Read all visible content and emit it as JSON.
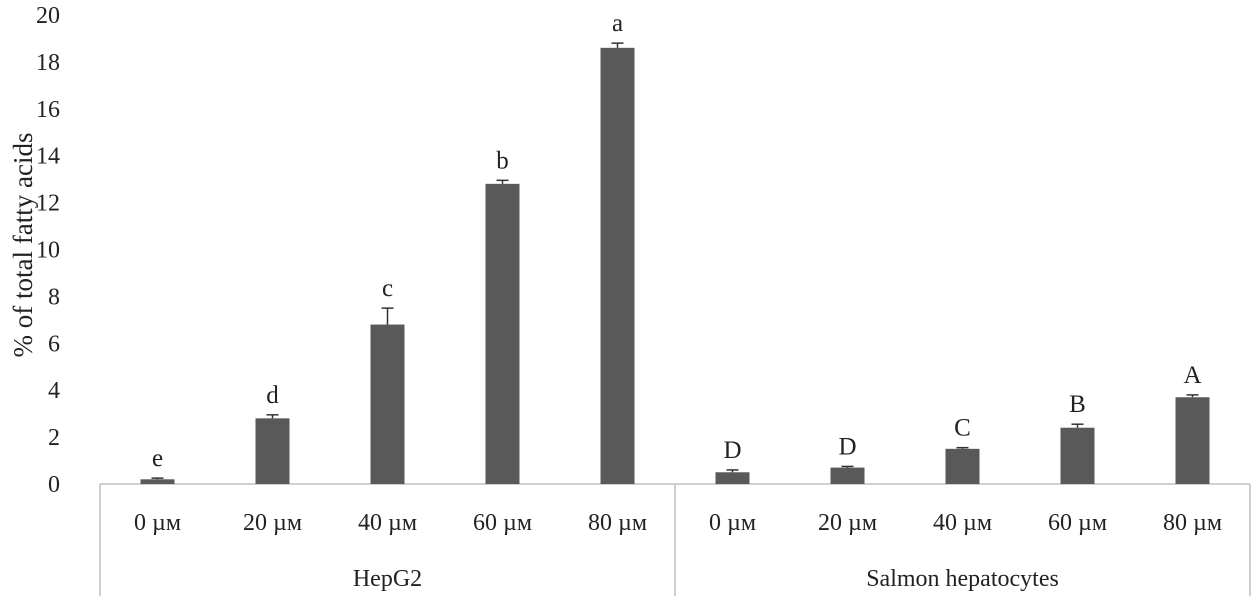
{
  "chart_data": {
    "type": "bar",
    "ylabel": "% of total fatty acids",
    "xlabel": "",
    "ylim": [
      0,
      20
    ],
    "y_ticks": [
      "0",
      "2",
      "4",
      "6",
      "8",
      "10",
      "12",
      "14",
      "16",
      "18",
      "20"
    ],
    "grid": false,
    "bar_color": "#595959",
    "groups": [
      {
        "name": "HepG2",
        "categories": [
          "0 µм",
          "20 µм",
          "40 µм",
          "60 µм",
          "80 µм"
        ],
        "values": [
          0.2,
          2.8,
          6.8,
          12.8,
          18.6
        ],
        "errors": [
          0.05,
          0.15,
          0.7,
          0.15,
          0.2
        ],
        "significance": [
          "e",
          "d",
          "c",
          "b",
          "a"
        ]
      },
      {
        "name": "Salmon hepatocytes",
        "categories": [
          "0 µм",
          "20 µм",
          "40 µм",
          "60 µм",
          "80 µм"
        ],
        "values": [
          0.5,
          0.7,
          1.5,
          2.4,
          3.7
        ],
        "errors": [
          0.1,
          0.05,
          0.05,
          0.15,
          0.1
        ],
        "significance": [
          "D",
          "D",
          "C",
          "B",
          "A"
        ]
      }
    ]
  }
}
